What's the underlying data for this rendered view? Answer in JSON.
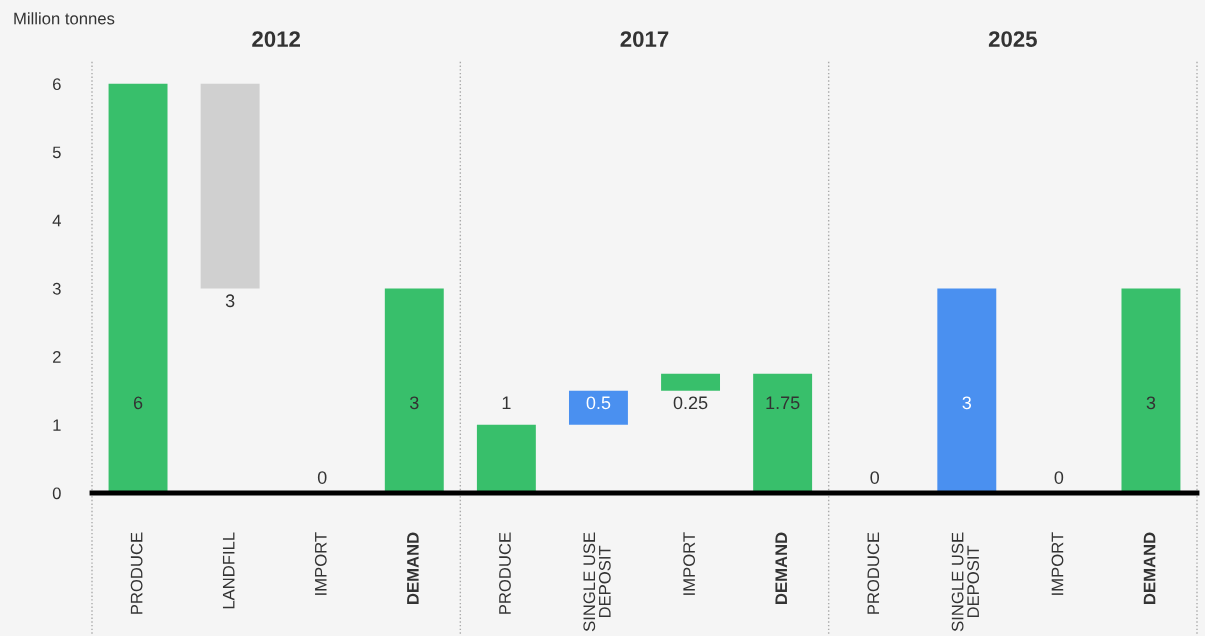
{
  "chart_data": {
    "type": "bar",
    "ylabel": "Million tonnes",
    "categories": [
      "PRODUCE",
      "LANDFILL",
      "IMPORT",
      "DEMAND",
      "PRODUCE",
      "SINGLE USE\nDEPOSIT",
      "IMPORT",
      "DEMAND",
      "PRODUCE",
      "SINGLE USE\nDEPOSIT",
      "IMPORT",
      "DEMAND"
    ],
    "values": [
      6,
      3,
      0,
      3,
      1,
      0.5,
      0.25,
      1.75,
      0,
      3,
      0,
      3
    ],
    "base": [
      0,
      3,
      0,
      0,
      0,
      1,
      1.5,
      0,
      0,
      0,
      0,
      0
    ],
    "colors": [
      "#38bf6b",
      "#d0d0d0",
      "#38bf6b",
      "#38bf6b",
      "#38bf6b",
      "#4a90f0",
      "#38bf6b",
      "#38bf6b",
      "#38bf6b",
      "#4a90f0",
      "#38bf6b",
      "#38bf6b"
    ],
    "data_labels": true,
    "annotations": [
      "2012",
      "2017",
      "2025"
    ],
    "ylim": [
      0,
      6.35
    ],
    "yticks": [
      0,
      1,
      2,
      3,
      4,
      5,
      6
    ],
    "grid": false
  }
}
